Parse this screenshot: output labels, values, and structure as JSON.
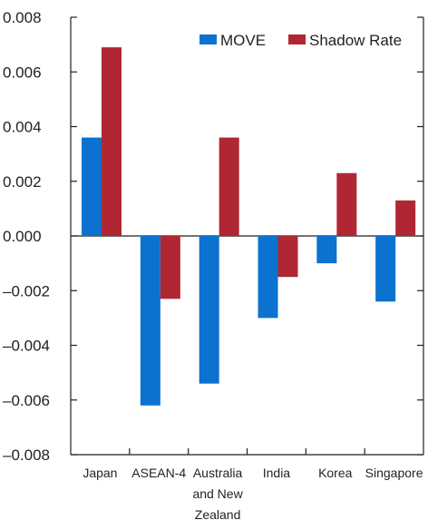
{
  "chart_data": {
    "type": "bar",
    "title": "",
    "xlabel": "",
    "ylabel": "",
    "categories": [
      [
        "Japan"
      ],
      [
        "ASEAN-4"
      ],
      [
        "Australia",
        "and New",
        "Zealand"
      ],
      [
        "India"
      ],
      [
        "Korea"
      ],
      [
        "Singapore"
      ]
    ],
    "series": [
      {
        "name": "MOVE",
        "color": "#0b72cf",
        "values": [
          0.0036,
          -0.0062,
          -0.0054,
          -0.003,
          -0.001,
          -0.0024
        ]
      },
      {
        "name": "Shadow Rate",
        "color": "#b02733",
        "values": [
          0.0069,
          -0.0023,
          0.0036,
          -0.0015,
          0.0023,
          0.0013
        ]
      }
    ],
    "ylim": [
      -0.008,
      0.008
    ],
    "yticks": [
      "0.008",
      "0.006",
      "0.004",
      "0.002",
      "0.000",
      "–0.002",
      "–0.004",
      "–0.006",
      "–0.008"
    ],
    "ytick_values": [
      0.008,
      0.006,
      0.004,
      0.002,
      0,
      -0.002,
      -0.004,
      -0.006,
      -0.008
    ],
    "legend_position": "top-right",
    "grid": false
  }
}
